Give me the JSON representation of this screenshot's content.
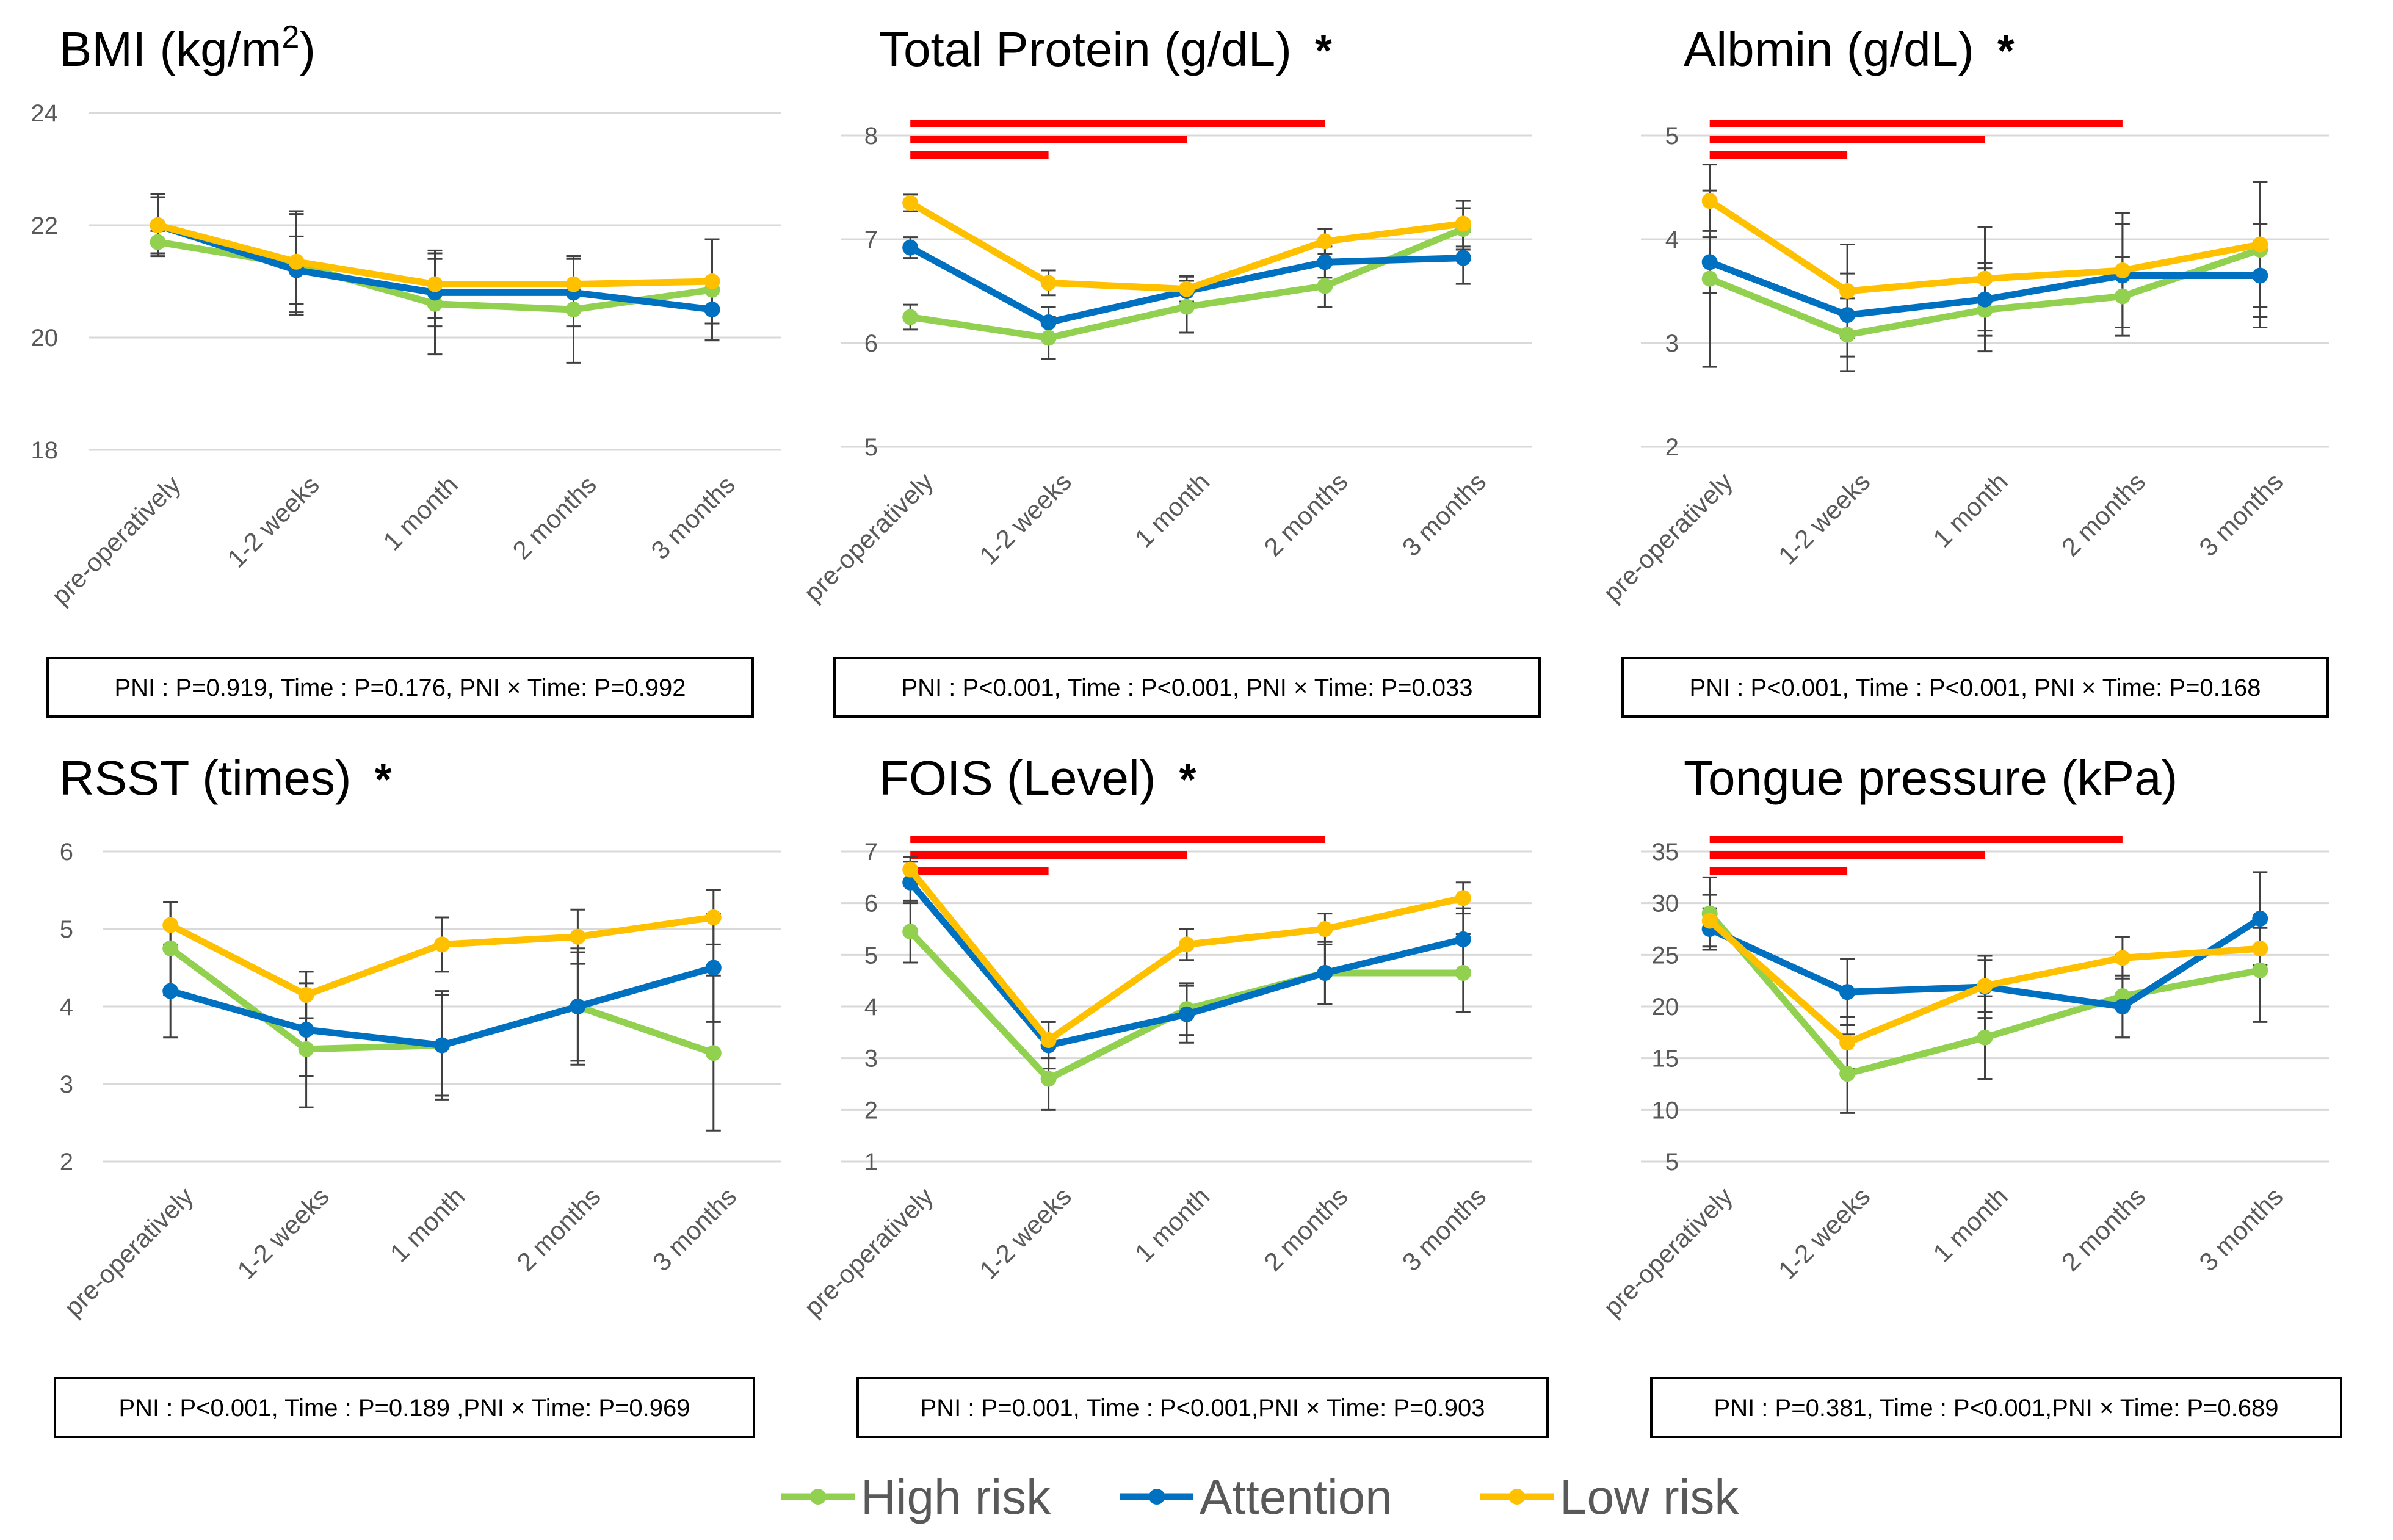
{
  "legend": [
    {
      "name": "High risk",
      "color": "#92D050"
    },
    {
      "name": "Attention",
      "color": "#0070C0"
    },
    {
      "name": "Low risk",
      "color": "#FFC000"
    }
  ],
  "chart_data": [
    {
      "type": "line",
      "title": "BMI (kg/m",
      "title_sup": "2",
      "title_tail": ")",
      "star": "",
      "categories": [
        "pre-operatively",
        "1-2 weeks",
        "1 month",
        "2 months",
        "3 months"
      ],
      "ylim": [
        18,
        24
      ],
      "yticks": [
        18,
        20,
        22,
        24
      ],
      "series": [
        {
          "name": "High risk",
          "values": [
            21.7,
            21.3,
            20.6,
            20.5,
            20.85
          ],
          "errors": [
            0.2,
            0.9,
            0.9,
            0.95,
            0.9
          ]
        },
        {
          "name": "Attention",
          "values": [
            22.0,
            21.2,
            20.8,
            20.8,
            20.5
          ],
          "errors": [
            0.55,
            0.6,
            0.6,
            0.6,
            0.55
          ]
        },
        {
          "name": "Low risk",
          "values": [
            22.0,
            21.35,
            20.95,
            20.95,
            21.0
          ],
          "errors": [
            0.5,
            0.9,
            0.6,
            0.5,
            0.75
          ]
        }
      ],
      "significance_bars": [],
      "stats": "PNI : P=0.919, Time : P=0.176, PNI × Time:  P=0.992"
    },
    {
      "type": "line",
      "title": "Total Protein (g/dL)",
      "title_sup": "",
      "title_tail": "",
      "star": "*",
      "categories": [
        "pre-operatively",
        "1-2 weeks",
        "1 month",
        "2 months",
        "3 months"
      ],
      "ylim": [
        5,
        8
      ],
      "yticks": [
        5,
        6,
        7,
        8
      ],
      "series": [
        {
          "name": "High risk",
          "values": [
            6.25,
            6.05,
            6.35,
            6.55,
            7.1
          ],
          "errors": [
            0.12,
            0.2,
            0.25,
            0.2,
            0.2
          ]
        },
        {
          "name": "Attention",
          "values": [
            6.92,
            6.2,
            6.5,
            6.78,
            6.82
          ],
          "errors": [
            0.1,
            0.15,
            0.15,
            0.15,
            0.25
          ]
        },
        {
          "name": "Low risk",
          "values": [
            7.35,
            6.58,
            6.52,
            6.98,
            7.15
          ],
          "errors": [
            0.08,
            0.12,
            0.12,
            0.12,
            0.22
          ]
        }
      ],
      "significance_bars": [
        [
          0,
          3
        ],
        [
          0,
          2
        ],
        [
          0,
          1
        ]
      ],
      "stats": "PNI : P<0.001, Time : P<0.001, PNI × Time:  P=0.033"
    },
    {
      "type": "line",
      "title": "Albmin (g/dL)",
      "title_sup": "",
      "title_tail": "",
      "star": "*",
      "categories": [
        "pre-operatively",
        "1-2 weeks",
        "1 month",
        "2 months",
        "3 months"
      ],
      "ylim": [
        2,
        5
      ],
      "yticks": [
        2,
        3,
        4,
        5
      ],
      "series": [
        {
          "name": "High risk",
          "values": [
            3.62,
            3.08,
            3.32,
            3.45,
            3.9
          ],
          "errors": [
            0.85,
            0.35,
            0.4,
            0.38,
            0.65
          ]
        },
        {
          "name": "Attention",
          "values": [
            3.78,
            3.27,
            3.42,
            3.65,
            3.65
          ],
          "errors": [
            0.3,
            0.4,
            0.35,
            0.5,
            0.5
          ]
        },
        {
          "name": "Low risk",
          "values": [
            4.37,
            3.5,
            3.62,
            3.7,
            3.95
          ],
          "errors": [
            0.35,
            0.45,
            0.5,
            0.55,
            0.6
          ]
        }
      ],
      "significance_bars": [
        [
          0,
          3
        ],
        [
          0,
          2
        ],
        [
          0,
          1
        ]
      ],
      "stats": "PNI : P<0.001, Time : P<0.001, PNI × Time:  P=0.168"
    },
    {
      "type": "line",
      "title": "RSST (times)",
      "title_sup": "",
      "title_tail": "",
      "star": "*",
      "categories": [
        "pre-operatively",
        "1-2 weeks",
        "1 month",
        "2 months",
        "3 months"
      ],
      "ylim": [
        2,
        6
      ],
      "yticks": [
        2,
        3,
        4,
        5,
        6
      ],
      "series": [
        {
          "name": "High risk",
          "values": [
            4.75,
            3.45,
            3.5,
            4.0,
            3.4
          ],
          "errors": [
            0.6,
            0.75,
            0.7,
            0.75,
            1.0
          ]
        },
        {
          "name": "Attention",
          "values": [
            4.2,
            3.7,
            3.5,
            4.0,
            4.5
          ],
          "errors": [
            0.6,
            0.6,
            0.65,
            0.7,
            0.7
          ]
        },
        {
          "name": "Low risk",
          "values": [
            5.05,
            4.15,
            4.8,
            4.9,
            5.15
          ],
          "errors": [
            0.3,
            0.3,
            0.35,
            0.35,
            0.35
          ]
        }
      ],
      "significance_bars": [],
      "stats": "PNI : P<0.001, Time : P=0.189 ,PNI × Time:  P=0.969"
    },
    {
      "type": "line",
      "title": "FOIS (Level)",
      "title_sup": "",
      "title_tail": "",
      "star": "*",
      "categories": [
        "pre-operatively",
        "1-2 weeks",
        "1 month",
        "2 months",
        "3 months"
      ],
      "ylim": [
        1,
        7
      ],
      "yticks": [
        1,
        2,
        3,
        4,
        5,
        6,
        7
      ],
      "series": [
        {
          "name": "High risk",
          "values": [
            5.45,
            2.6,
            3.95,
            4.65,
            4.65
          ],
          "errors": [
            0.6,
            0.6,
            0.5,
            0.6,
            0.75
          ]
        },
        {
          "name": "Attention",
          "values": [
            6.4,
            3.25,
            3.85,
            4.65,
            5.3
          ],
          "errors": [
            0.4,
            0.45,
            0.55,
            0.6,
            0.6
          ]
        },
        {
          "name": "Low risk",
          "values": [
            6.65,
            3.35,
            5.2,
            5.5,
            6.1
          ],
          "errors": [
            0.25,
            0.35,
            0.3,
            0.3,
            0.3
          ]
        }
      ],
      "significance_bars": [
        [
          0,
          3
        ],
        [
          0,
          2
        ],
        [
          0,
          1
        ]
      ],
      "stats": "PNI : P=0.001, Time : P<0.001,PNI × Time:  P=0.903"
    },
    {
      "type": "line",
      "title": "Tongue pressure (kPa)",
      "title_sup": "",
      "title_tail": "",
      "star": "",
      "categories": [
        "pre-operatively",
        "1-2 weeks",
        "1 month",
        "2 months",
        "3 months"
      ],
      "ylim": [
        5,
        35
      ],
      "yticks": [
        5,
        10,
        15,
        20,
        25,
        30,
        35
      ],
      "series": [
        {
          "name": "High risk",
          "values": [
            29.0,
            13.5,
            17.0,
            21.0,
            23.5
          ],
          "errors": [
            3.5,
            3.8,
            4.0,
            4.0,
            5.0
          ]
        },
        {
          "name": "Attention",
          "values": [
            27.5,
            21.4,
            21.9,
            20.0,
            28.5
          ],
          "errors": [
            2.0,
            3.2,
            3.0,
            3.0,
            4.5
          ]
        },
        {
          "name": "Low risk",
          "values": [
            28.3,
            16.5,
            22.0,
            24.7,
            25.6
          ],
          "errors": [
            2.5,
            2.5,
            2.5,
            2.0,
            2.0
          ]
        }
      ],
      "significance_bars": [
        [
          0,
          3
        ],
        [
          0,
          2
        ],
        [
          0,
          1
        ]
      ],
      "stats": "PNI : P=0.381, Time : P<0.001,PNI × Time:  P=0.689"
    }
  ]
}
